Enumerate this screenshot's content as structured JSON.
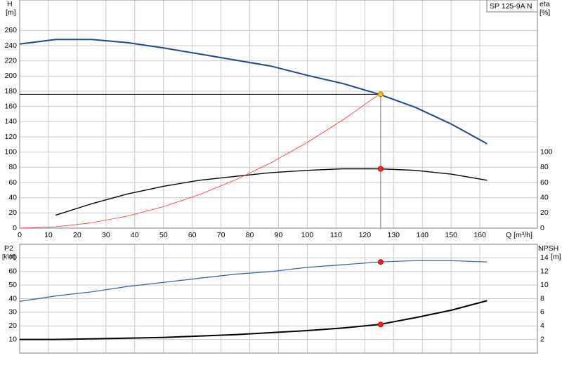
{
  "chart_data": [
    {
      "type": "line",
      "ylabel": "H",
      "yunit": "[m]",
      "y2label": "eta",
      "y2unit": "[%]",
      "xlabel": "Q [m³/h]",
      "model": "SP 125-9A N",
      "x": [
        0,
        12.5,
        25,
        37.5,
        50,
        62.5,
        75,
        87.5,
        100,
        112.5,
        125,
        137.5,
        150,
        162.5
      ],
      "xlim": [
        0,
        180
      ],
      "xticks": [
        0,
        10,
        20,
        30,
        40,
        50,
        60,
        70,
        80,
        90,
        100,
        110,
        120,
        130,
        140,
        150,
        160
      ],
      "ylim": [
        0,
        300
      ],
      "yticks": [
        0,
        20,
        40,
        60,
        80,
        100,
        120,
        140,
        160,
        180,
        200,
        220,
        240,
        260
      ],
      "y2lim": [
        0,
        300
      ],
      "y2ticks": [
        0,
        20,
        40,
        60,
        80,
        100
      ],
      "grid": true,
      "series": [
        {
          "color": "#1a4a8a",
          "values": [
            242,
            248,
            248,
            244,
            237,
            229,
            221,
            213,
            201,
            190,
            176,
            159,
            137,
            111
          ]
        },
        {
          "color": "#000000",
          "axis": "y2",
          "values": [
            null,
            17,
            32,
            45,
            55,
            63,
            68,
            73,
            76,
            78,
            78,
            76,
            71,
            63
          ]
        },
        {
          "color": "#ff3030",
          "values": [
            0,
            1.8,
            7,
            15.8,
            28.2,
            44,
            63.4,
            86.2,
            112.6,
            142.6,
            176,
            null,
            null,
            null
          ]
        }
      ],
      "duty_point": {
        "x": 125.5,
        "y": 176,
        "y2": 78
      }
    },
    {
      "type": "line",
      "ylabel": "P2",
      "yunit": "[kW]",
      "y2label": "NPSH",
      "y2unit": "[m]",
      "x": [
        0,
        12.5,
        25,
        37.5,
        50,
        62.5,
        75,
        87.5,
        100,
        112.5,
        125,
        137.5,
        150,
        162.5
      ],
      "xlim": [
        0,
        180
      ],
      "ylim": [
        0,
        80
      ],
      "yticks": [
        10,
        20,
        30,
        40,
        50,
        60,
        70
      ],
      "y2lim": [
        0,
        16
      ],
      "y2ticks": [
        2,
        4,
        6,
        8,
        10,
        12,
        14
      ],
      "grid": true,
      "series": [
        {
          "color": "#2a5fa0",
          "values": [
            38,
            42,
            45,
            49,
            52,
            55,
            58,
            60,
            63,
            65,
            67,
            68,
            68,
            67
          ]
        },
        {
          "color": "#000000",
          "axis": "y2",
          "values": [
            2,
            2,
            2.1,
            2.2,
            2.3,
            2.5,
            2.7,
            3,
            3.3,
            3.7,
            4.2,
            5.2,
            6.3,
            7.7
          ]
        }
      ],
      "duty_point": {
        "x": 125.5,
        "y": 67,
        "y2": 4.2
      }
    }
  ]
}
